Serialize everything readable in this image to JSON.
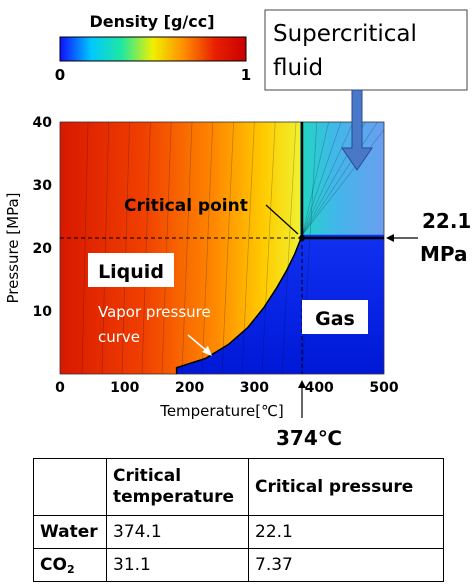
{
  "colorbar": {
    "title": "Density [g/cc]",
    "min_label": "0",
    "max_label": "1",
    "gradient": [
      "#1010ff",
      "#00c8ff",
      "#20e8a0",
      "#f0f000",
      "#ff8c00",
      "#e82000",
      "#c80000"
    ]
  },
  "annotations": {
    "supercritical_line1": "Supercritical",
    "supercritical_line2": "fluid",
    "critical_point": "Critical point",
    "pressure_value": "22.1",
    "pressure_unit": "MPa",
    "liquid": "Liquid",
    "gas": "Gas",
    "vapor_line1": "Vapor pressure",
    "vapor_line2": "curve",
    "temp_marker": "374℃"
  },
  "chart_data": {
    "type": "heatmap",
    "xlabel": "Temperature[℃]",
    "ylabel": "Pressure [MPa]",
    "xlim": [
      0,
      500
    ],
    "ylim": [
      0,
      40
    ],
    "xticks": [
      "0",
      "100",
      "200",
      "300",
      "400",
      "500"
    ],
    "yticks": [
      "10",
      "20",
      "30",
      "40"
    ],
    "critical_point": {
      "temperature": 374,
      "pressure": 22.1
    },
    "vapor_pressure_curve": [
      {
        "t": 180,
        "p": 1.0
      },
      {
        "t": 225,
        "p": 2.5
      },
      {
        "t": 260,
        "p": 4.7
      },
      {
        "t": 290,
        "p": 7.4
      },
      {
        "t": 315,
        "p": 10.6
      },
      {
        "t": 335,
        "p": 13.8
      },
      {
        "t": 350,
        "p": 16.5
      },
      {
        "t": 362,
        "p": 19.0
      },
      {
        "t": 374,
        "p": 22.1
      }
    ]
  },
  "table": {
    "headers": [
      "",
      "Critical temperature",
      "Critical pressure"
    ],
    "rows": [
      {
        "label": "Water",
        "label_sub": "",
        "temperature": "374.1",
        "pressure": "22.1"
      },
      {
        "label": "CO",
        "label_sub": "2",
        "temperature": "31.1",
        "pressure": "7.37"
      }
    ]
  }
}
